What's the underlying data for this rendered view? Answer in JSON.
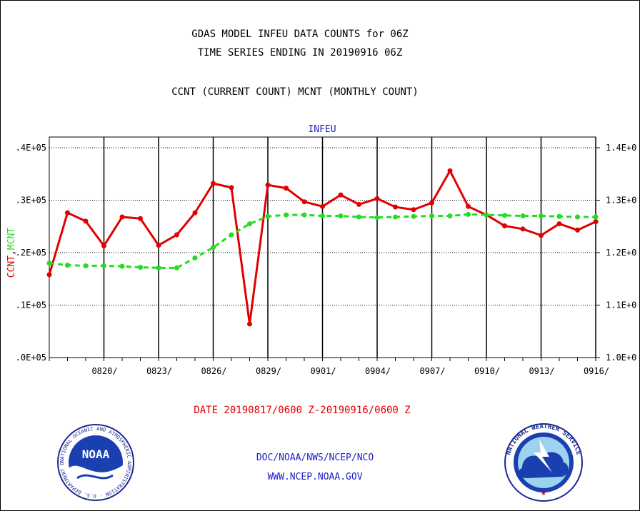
{
  "titles": {
    "line1": "GDAS MODEL INFEU DATA COUNTS for 06Z",
    "line2": "TIME SERIES ENDING IN 20190916 06Z",
    "line3": "CCNT (CURRENT COUNT) MCNT (MONTHLY COUNT)"
  },
  "footer": {
    "date_range": "DATE 20190817/0600 Z-20190916/0600 Z",
    "org": "DOC/NOAA/NWS/NCEP/NCO",
    "url": "WWW.NCEP.NOAA.GOV"
  },
  "logos": {
    "left": "noaa-logo",
    "right": "national-weather-service-logo",
    "left_text": "NOAA",
    "left_ring_text": "NATIONAL OCEANIC AND ATMOSPHERIC ADMINISTRATION · U.S. DEPARTMENT OF COMMERCE",
    "right_ring_text": "NATIONAL WEATHER SERVICE"
  },
  "colors": {
    "ccnt": "#e00000",
    "mcnt": "#22dd22",
    "grid": "#000000",
    "label_blue": "#1c1cc8"
  },
  "chart_data": {
    "type": "line",
    "title": "INFEU",
    "ylabel_left": [
      "CCNT",
      ",",
      "MCNT"
    ],
    "ylabel_left_colors": [
      "#e00000",
      "#000000",
      "#22dd22"
    ],
    "x_tick_labels": [
      "0820/",
      "0823/",
      "0826/",
      "0829/",
      "0901/",
      "0904/",
      "0907/",
      "0910/",
      "0913/",
      "0916/"
    ],
    "x_tick_days": [
      3,
      6,
      9,
      12,
      15,
      18,
      21,
      24,
      27,
      30
    ],
    "x_range": [
      0,
      30
    ],
    "y_left_ticks": [
      ".0E+05",
      ".1E+05",
      ".2E+05",
      ".3E+05",
      ".4E+05"
    ],
    "y_right_ticks": [
      "1.0E+0",
      "1.1E+0",
      "1.2E+0",
      "1.3E+0",
      "1.4E+0"
    ],
    "ylim": [
      0.0,
      0.4
    ],
    "grid": true,
    "x_days": [
      0,
      1,
      2,
      3,
      4,
      5,
      6,
      7,
      8,
      9,
      10,
      11,
      12,
      13,
      14,
      15,
      16,
      17,
      18,
      19,
      20,
      21,
      22,
      23,
      24,
      25,
      26,
      27,
      28,
      29,
      30
    ],
    "series": [
      {
        "name": "CCNT",
        "color": "#e00000",
        "style": "solid",
        "values": [
          0.158,
          0.276,
          0.26,
          0.213,
          0.268,
          0.265,
          0.214,
          0.234,
          0.276,
          0.332,
          0.324,
          0.064,
          0.329,
          0.323,
          0.297,
          0.288,
          0.31,
          0.292,
          0.303,
          0.287,
          0.282,
          0.295,
          0.356,
          0.288,
          0.272,
          0.251,
          0.245,
          0.233,
          0.255,
          0.243,
          0.259
        ]
      },
      {
        "name": "MCNT",
        "color": "#22dd22",
        "style": "dashed",
        "values": [
          0.18,
          0.176,
          0.175,
          0.175,
          0.174,
          0.172,
          0.171,
          0.171,
          0.19,
          0.21,
          0.234,
          0.255,
          0.269,
          0.272,
          0.272,
          0.27,
          0.27,
          0.268,
          0.267,
          0.268,
          0.269,
          0.27,
          0.27,
          0.273,
          0.272,
          0.271,
          0.27,
          0.27,
          0.269,
          0.268,
          0.268
        ]
      }
    ]
  }
}
